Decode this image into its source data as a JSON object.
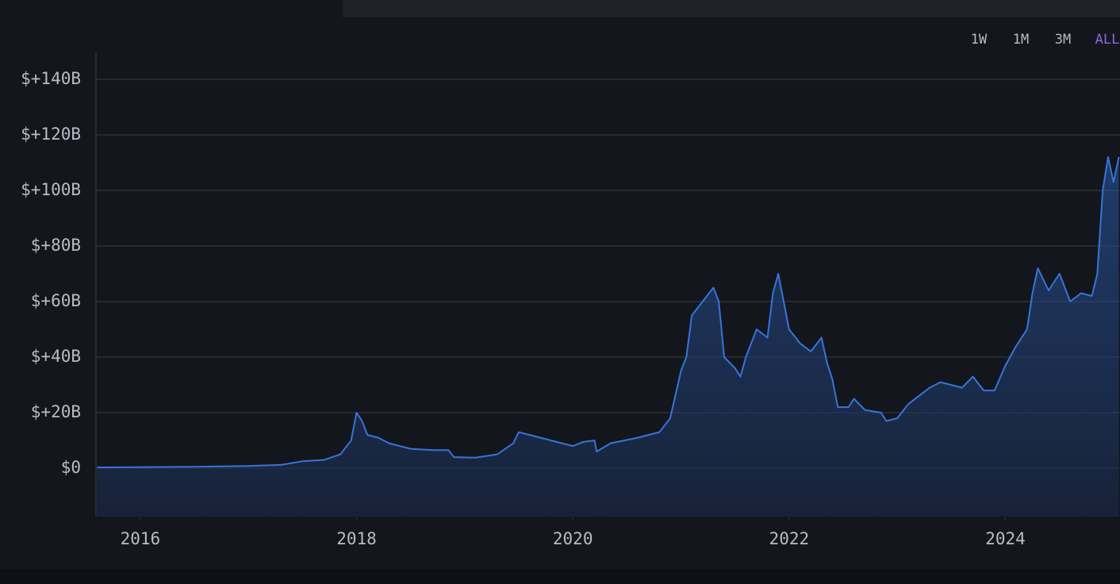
{
  "timeframes": [
    {
      "label": "1W",
      "active": false
    },
    {
      "label": "1M",
      "active": false
    },
    {
      "label": "3M",
      "active": false
    },
    {
      "label": "ALL",
      "active": true
    }
  ],
  "chart_data": {
    "type": "area",
    "x": [
      2015.6,
      2016.0,
      2016.5,
      2017.0,
      2017.3,
      2017.5,
      2017.7,
      2017.85,
      2017.95,
      2018.0,
      2018.05,
      2018.1,
      2018.2,
      2018.3,
      2018.5,
      2018.7,
      2018.85,
      2018.9,
      2019.1,
      2019.3,
      2019.45,
      2019.5,
      2019.6,
      2019.8,
      2020.0,
      2020.1,
      2020.2,
      2020.22,
      2020.35,
      2020.6,
      2020.8,
      2020.9,
      2021.0,
      2021.05,
      2021.1,
      2021.2,
      2021.3,
      2021.35,
      2021.4,
      2021.5,
      2021.55,
      2021.6,
      2021.7,
      2021.8,
      2021.85,
      2021.9,
      2021.95,
      2022.0,
      2022.1,
      2022.2,
      2022.3,
      2022.35,
      2022.4,
      2022.45,
      2022.55,
      2022.6,
      2022.7,
      2022.85,
      2022.9,
      2023.0,
      2023.1,
      2023.2,
      2023.3,
      2023.4,
      2023.5,
      2023.6,
      2023.7,
      2023.8,
      2023.9,
      2024.0,
      2024.1,
      2024.2,
      2024.25,
      2024.3,
      2024.4,
      2024.5,
      2024.6,
      2024.7,
      2024.8,
      2024.85,
      2024.9,
      2024.95,
      2025.0,
      2025.05
    ],
    "series": [
      {
        "color": "#3575d9",
        "values": [
          0.3,
          0.4,
          0.5,
          0.8,
          1.2,
          2.5,
          3.0,
          5,
          10,
          20,
          17,
          12,
          11,
          9,
          7,
          6.5,
          6.5,
          4,
          3.8,
          5,
          9,
          13,
          12,
          10,
          8,
          9.5,
          10,
          6,
          9,
          11,
          13,
          18,
          35,
          40,
          55,
          60,
          65,
          60,
          40,
          36,
          33,
          40,
          50,
          47,
          63,
          70,
          60,
          50,
          45,
          42,
          47,
          38,
          32,
          22,
          22,
          25,
          21,
          20,
          17,
          18,
          23,
          26,
          29,
          31,
          30,
          29,
          33,
          28,
          28,
          37,
          44,
          50,
          63,
          72,
          64,
          70,
          60,
          63,
          62,
          70,
          100,
          112,
          103,
          112
        ]
      }
    ],
    "xlim": [
      2015.59,
      2025.06
    ],
    "xticks": [
      2016,
      2018,
      2020,
      2022,
      2024
    ],
    "ylim": [
      -17.4,
      149.7
    ],
    "yticks": [
      {
        "value": 0,
        "label": "$0"
      },
      {
        "value": 20,
        "label": "$+20B"
      },
      {
        "value": 40,
        "label": "$+40B"
      },
      {
        "value": 60,
        "label": "$+60B"
      },
      {
        "value": 80,
        "label": "$+80B"
      },
      {
        "value": 100,
        "label": "$+100B"
      },
      {
        "value": 120,
        "label": "$+120B"
      },
      {
        "value": 140,
        "label": "$+140B"
      }
    ],
    "grid": true
  }
}
